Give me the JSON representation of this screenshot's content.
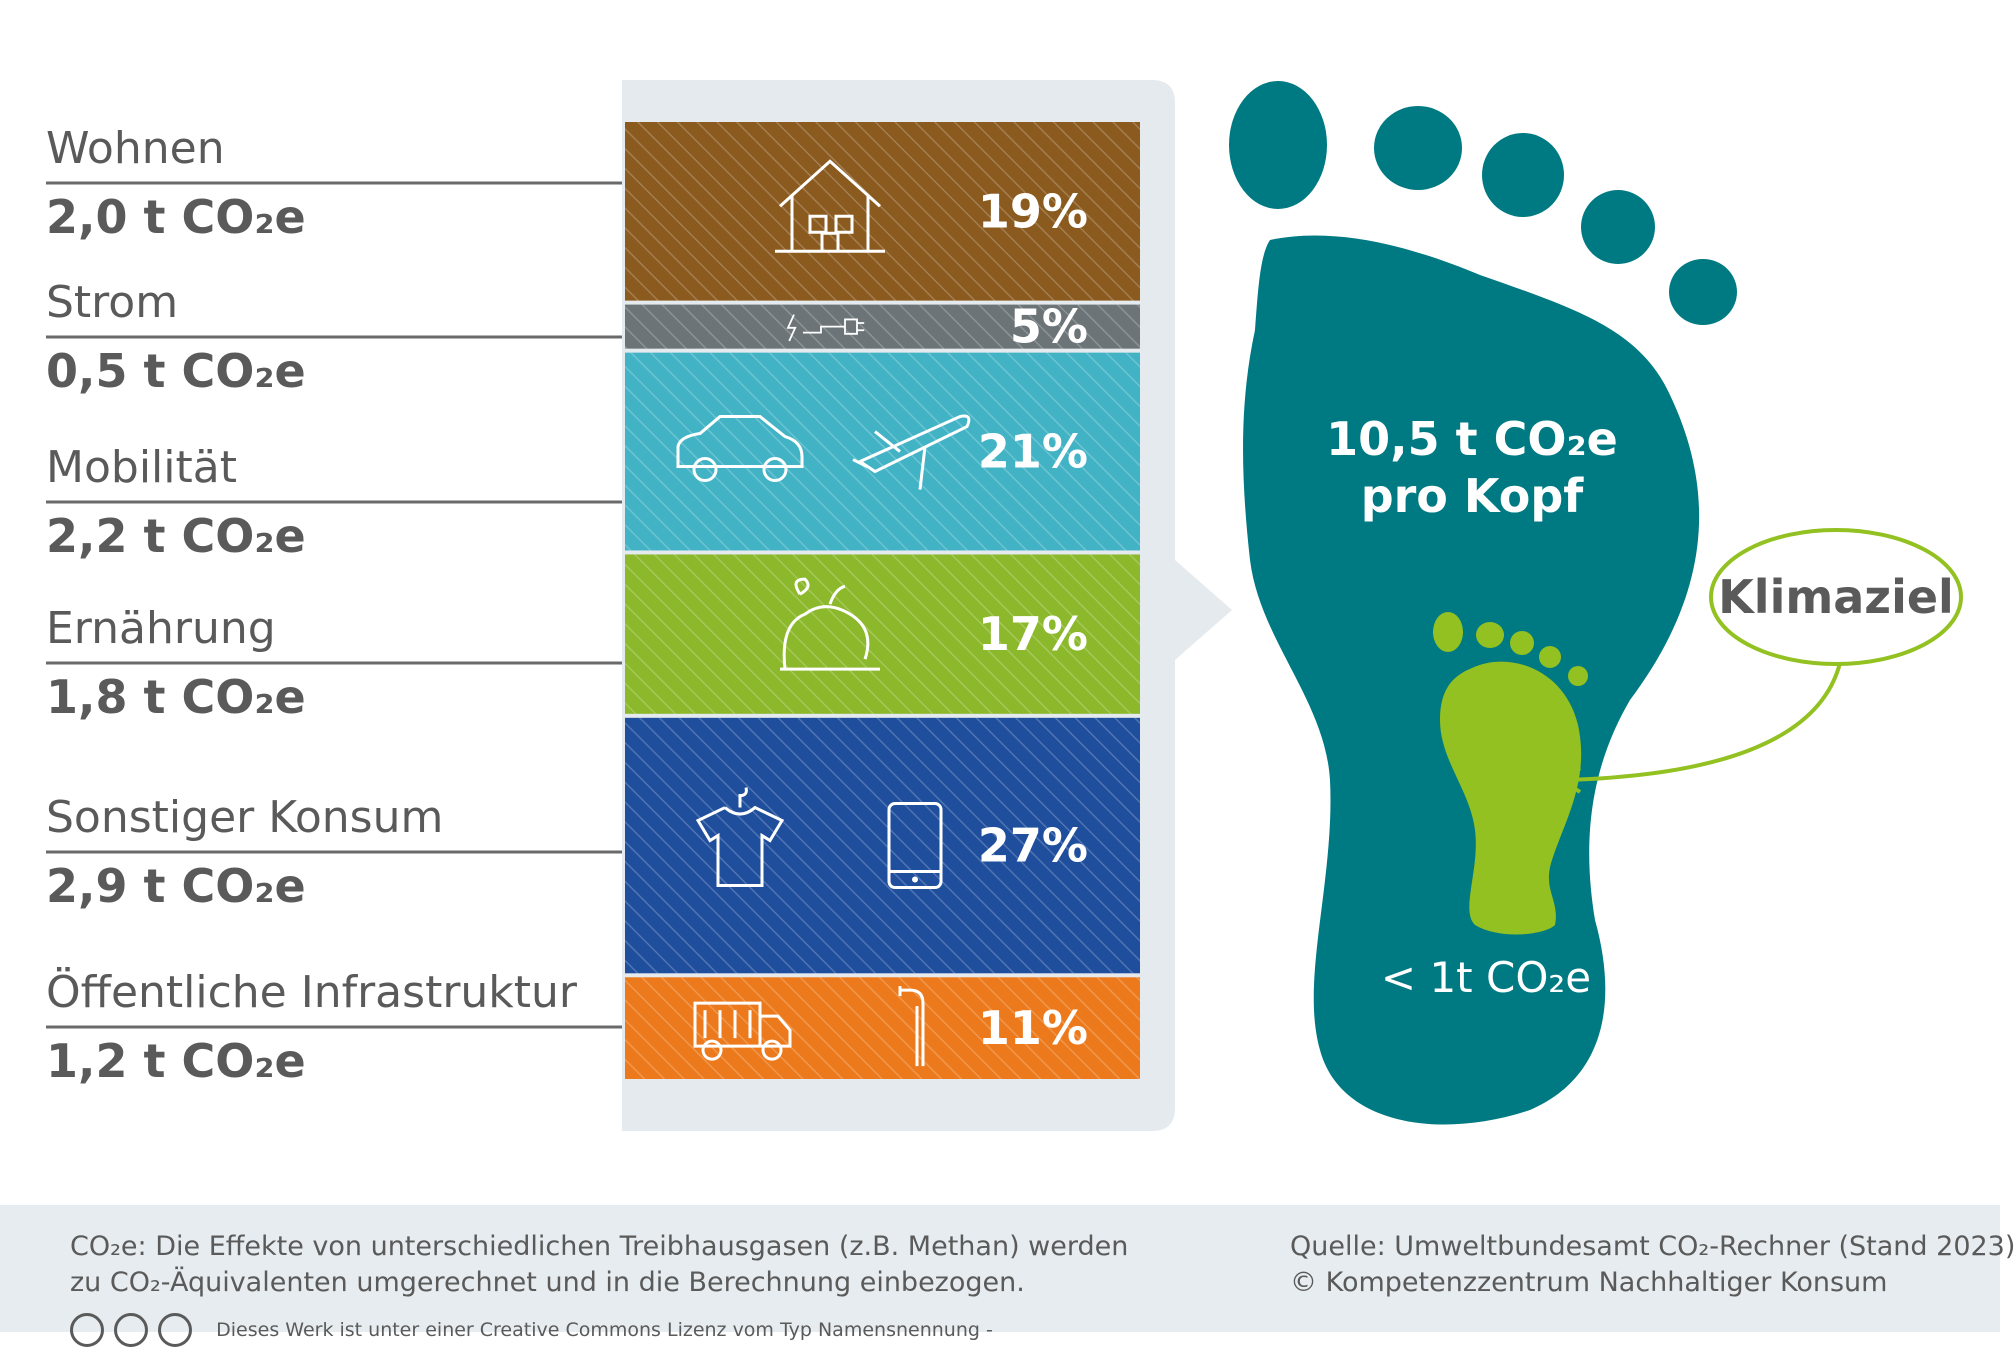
{
  "chart_data": {
    "type": "bar",
    "categories": [
      {
        "name": "Wohnen",
        "value": "2,0 t CO₂e",
        "percent": 19,
        "percent_label": "19%",
        "color": "#8a5a1f",
        "icons": [
          "house-icon"
        ]
      },
      {
        "name": "Strom",
        "value": "0,5 t CO₂e",
        "percent": 5,
        "percent_label": "5%",
        "color": "#6c7478",
        "icons": [
          "plug-icon"
        ]
      },
      {
        "name": "Mobilität",
        "value": "2,2 t CO₂e",
        "percent": 21,
        "percent_label": "21%",
        "color": "#42b3c5",
        "icons": [
          "car-icon",
          "plane-icon"
        ]
      },
      {
        "name": "Ernährung",
        "value": "1,8 t CO₂e",
        "percent": 17,
        "percent_label": "17%",
        "color": "#8cb82b",
        "icons": [
          "food-icon"
        ]
      },
      {
        "name": "Sonstiger Konsum",
        "value": "2,9 t CO₂e",
        "percent": 27,
        "percent_label": "27%",
        "color": "#1f4e9c",
        "icons": [
          "shirt-icon",
          "phone-icon"
        ]
      },
      {
        "name": "Öffentliche Infrastruktur",
        "value": "1,2 t CO₂e",
        "percent": 11,
        "percent_label": "11%",
        "color": "#ec7a1c",
        "icons": [
          "truck-icon",
          "streetlight-icon"
        ]
      }
    ],
    "stacked": true,
    "total": {
      "line1": "10,5 t CO₂e",
      "line2": "pro Kopf"
    },
    "target": {
      "label": "Klimaziel",
      "value": "< 1t CO₂e"
    }
  },
  "colors": {
    "footprint": "#007a82",
    "target_foot": "#92c121",
    "label_text": "#5a5a5a",
    "footer_bg": "#e6ecef"
  },
  "footer": {
    "note_line1": "CO₂e: Die Effekte von unterschiedlichen Treibhausgasen (z.B. Methan) werden",
    "note_line2": "zu CO₂-Äquivalenten umgerechnet und in die Berechnung einbezogen.",
    "source_line1": "Quelle: Umweltbundesamt CO₂-Rechner (Stand 2023)",
    "source_line2": "© Kompetenzzentrum Nachhaltiger Konsum",
    "license_text": "Dieses Werk ist unter einer Creative Commons Lizenz vom Typ Namensnennung -"
  }
}
